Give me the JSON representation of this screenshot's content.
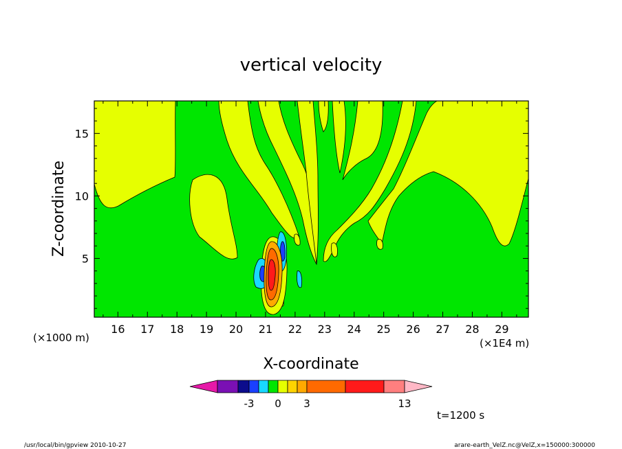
{
  "chart_data": {
    "type": "heatmap",
    "title": "vertical velocity",
    "xlabel": "X-coordinate",
    "ylabel": "Z-coordinate",
    "x_unit_label": "(×1E4 m)",
    "y_unit_label": "(×1000 m)",
    "xlim": [
      15.2,
      29.9
    ],
    "ylim": [
      0.3,
      17.6
    ],
    "x_ticks": [
      16,
      17,
      18,
      19,
      20,
      21,
      22,
      23,
      24,
      25,
      26,
      27,
      28,
      29
    ],
    "y_ticks": [
      5,
      10,
      15
    ],
    "grid": false,
    "colorbar": {
      "ticks": [
        "-3",
        "0",
        "3",
        "13"
      ],
      "levels": [
        {
          "color": "#e619a8"
        },
        {
          "color": "#7a10b4"
        },
        {
          "color": "#0c0c8c"
        },
        {
          "color": "#1a40ff"
        },
        {
          "color": "#19d8ff"
        },
        {
          "color": "#00e600"
        },
        {
          "color": "#e6ff00"
        },
        {
          "color": "#ffd400"
        },
        {
          "color": "#ffaa00"
        },
        {
          "color": "#ff6a00"
        },
        {
          "color": "#ff1a1a"
        },
        {
          "color": "#ff7f7f"
        },
        {
          "color": "#ffb8c6"
        }
      ]
    },
    "background_color": "#00e600",
    "positive_color": "#e6ff00",
    "time_label": "t=1200 s"
  },
  "footer": {
    "left": "/usr/local/bin/gpview  2010-10-27",
    "right": "arare-earth_VelZ.nc@VelZ,x=150000:300000"
  }
}
